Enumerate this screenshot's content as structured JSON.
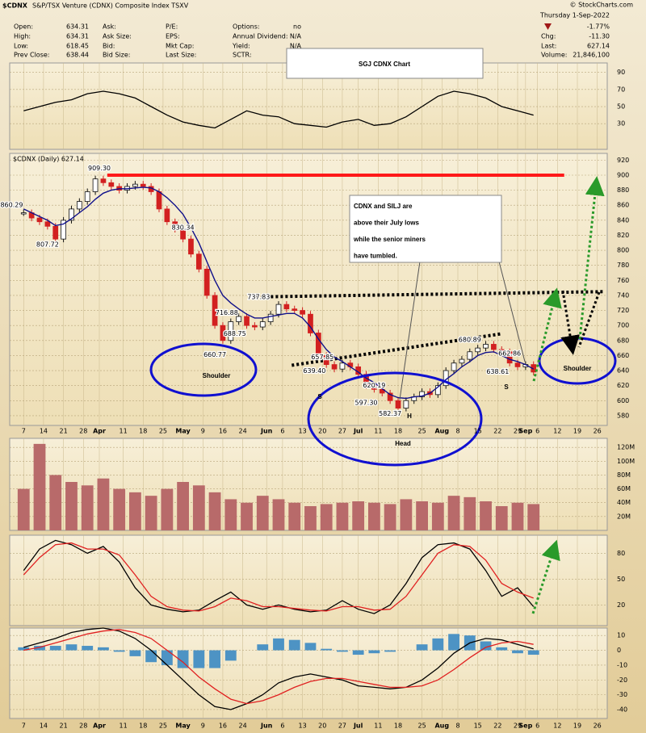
{
  "quote": {
    "symbol": "$CDNX",
    "description": "S&P/TSX Venture (CDNX) Composite Index TSXV",
    "credit": "© StockCharts.com",
    "col1": [
      {
        "label": "Open:",
        "value": "634.31"
      },
      {
        "label": "High:",
        "value": "634.31"
      },
      {
        "label": "Low:",
        "value": "618.45"
      },
      {
        "label": "Prev Close:",
        "value": "638.44"
      }
    ],
    "col2": [
      "Ask:",
      "Ask Size:",
      "Bid:",
      "Bid Size:"
    ],
    "col3": [
      "P/E:",
      "EPS:",
      "Mkt Cap:",
      "Last Size:"
    ],
    "col4": [
      {
        "label": "Options:",
        "value": "no"
      },
      {
        "label": "Annual Dividend:",
        "value": "N/A"
      },
      {
        "label": "Yield:",
        "value": "N/A"
      },
      {
        "label": "SCTR:"
      }
    ],
    "date": "Thursday  1-Sep-2022",
    "change_pct": "-1.77%",
    "right": [
      {
        "label": "Chg:",
        "value": "-11.30"
      },
      {
        "label": "Last:",
        "value": "627.14"
      },
      {
        "label": "Volume:",
        "value": "21,846,100"
      }
    ],
    "price_legend": "$CDNX (Daily) 627.14"
  },
  "annotations": {
    "title": "SGJ CDNX Chart",
    "callout": [
      "CDNX and SILJ are",
      "above their July lows",
      "while the senior miners",
      "have tumbled."
    ],
    "left_shoulder": "Shoulder",
    "head": "Head",
    "right_shoulder": "Shoulder",
    "s_left": "S",
    "h": "H",
    "s_right": "S"
  },
  "chart_data": [
    {
      "type": "line",
      "xlim": [
        -3.5,
        146.5
      ],
      "x": [
        0,
        4,
        8,
        12,
        16,
        20,
        24,
        28,
        32,
        36,
        40,
        44,
        48,
        52,
        56,
        60,
        64,
        68,
        72,
        76,
        80,
        84,
        88,
        92,
        96,
        100,
        104,
        108,
        112,
        116,
        120,
        124,
        128
      ],
      "series": [
        {
          "color": "#000000",
          "values": [
            45,
            50,
            55,
            58,
            65,
            68,
            65,
            60,
            50,
            40,
            32,
            28,
            25,
            35,
            45,
            40,
            38,
            30,
            28,
            26,
            32,
            35,
            28,
            30,
            38,
            50,
            62,
            68,
            65,
            60,
            50,
            45,
            40
          ]
        }
      ],
      "ylim": [
        0,
        101
      ],
      "yticks": [
        30,
        50,
        70,
        90
      ],
      "grid": true
    },
    {
      "type": "candle",
      "xlim": [
        -3.5,
        146.5
      ],
      "xticks": [
        {
          "value": 0,
          "label": "7"
        },
        {
          "value": 5,
          "label": "14"
        },
        {
          "value": 10,
          "label": "21"
        },
        {
          "value": 15,
          "label": "28"
        },
        {
          "value": 19,
          "label": "Apr"
        },
        {
          "value": 25,
          "label": "11"
        },
        {
          "value": 30,
          "label": "18"
        },
        {
          "value": 35,
          "label": "25"
        },
        {
          "value": 40,
          "label": "May"
        },
        {
          "value": 45,
          "label": "9"
        },
        {
          "value": 50,
          "label": "16"
        },
        {
          "value": 55,
          "label": "24"
        },
        {
          "value": 61,
          "label": "Jun"
        },
        {
          "value": 65,
          "label": "6"
        },
        {
          "value": 70,
          "label": "13"
        },
        {
          "value": 75,
          "label": "20"
        },
        {
          "value": 80,
          "label": "27"
        },
        {
          "value": 84,
          "label": "Jul"
        },
        {
          "value": 89,
          "label": "11"
        },
        {
          "value": 94,
          "label": "18"
        },
        {
          "value": 100,
          "label": "25"
        },
        {
          "value": 105,
          "label": "Aug"
        },
        {
          "value": 109,
          "label": "8"
        },
        {
          "value": 114,
          "label": "15"
        },
        {
          "value": 119,
          "label": "22"
        },
        {
          "value": 124,
          "label": "29"
        },
        {
          "value": 126,
          "label": "Sep"
        },
        {
          "value": 129,
          "label": "6"
        },
        {
          "value": 134,
          "label": "12"
        },
        {
          "value": 139,
          "label": "19"
        },
        {
          "value": 144,
          "label": "26"
        }
      ],
      "x": [
        0,
        2,
        4,
        6,
        8,
        10,
        12,
        14,
        16,
        18,
        20,
        22,
        24,
        26,
        28,
        30,
        32,
        34,
        36,
        38,
        40,
        42,
        44,
        46,
        48,
        50,
        52,
        54,
        56,
        58,
        60,
        62,
        64,
        66,
        68,
        70,
        72,
        74,
        76,
        78,
        80,
        82,
        84,
        86,
        88,
        90,
        92,
        94,
        96,
        98,
        100,
        102,
        104,
        106,
        108,
        110,
        112,
        114,
        116,
        118,
        120,
        122,
        124,
        126,
        128
      ],
      "series": [
        {
          "kind": "candle",
          "up_color": "#111111",
          "down_color": "#d22020",
          "values": [
            850,
            843,
            838,
            832,
            815,
            840,
            855,
            865,
            878,
            895,
            890,
            885,
            880,
            885,
            888,
            885,
            878,
            855,
            838,
            828,
            815,
            795,
            775,
            740,
            700,
            680,
            705,
            712,
            700,
            698,
            705,
            715,
            728,
            722,
            720,
            715,
            690,
            660,
            648,
            642,
            650,
            645,
            635,
            620,
            615,
            610,
            600,
            590,
            600,
            605,
            612,
            608,
            620,
            640,
            650,
            655,
            665,
            670,
            675,
            668,
            665,
            650,
            645,
            648,
            638
          ]
        },
        {
          "kind": "line",
          "color": "#10108a",
          "values": [
            855,
            850,
            845,
            840,
            833,
            835,
            842,
            850,
            858,
            868,
            876,
            880,
            882,
            882,
            883,
            884,
            883,
            878,
            870,
            860,
            848,
            830,
            810,
            785,
            760,
            740,
            730,
            722,
            715,
            710,
            710,
            712,
            714,
            716,
            716,
            710,
            698,
            682,
            668,
            658,
            652,
            645,
            638,
            630,
            624,
            616,
            608,
            604,
            603,
            605,
            606,
            610,
            618,
            628,
            636,
            645,
            652,
            660,
            664,
            665,
            660,
            655,
            652,
            648,
            642
          ]
        }
      ],
      "ylim": [
        567,
        929
      ],
      "yticks": [
        580,
        600,
        620,
        640,
        660,
        680,
        700,
        720,
        740,
        760,
        780,
        800,
        820,
        840,
        860,
        880,
        900,
        920
      ],
      "grid": true,
      "trendlines": [
        {
          "color": "#ff1a1a",
          "style": "solid",
          "x": [
            21,
            135.7
          ],
          "y": [
            900,
            900
          ]
        },
        {
          "color": "#000000",
          "style": "dotted",
          "x": [
            58.4,
            145.5
          ],
          "y": [
            738,
            745
          ]
        },
        {
          "color": "#000000",
          "style": "dotted",
          "x": [
            67.3,
            120
          ],
          "y": [
            647,
            689
          ]
        }
      ],
      "callouts": {
        "x": [
          -3,
          6,
          19,
          40,
          51,
          53,
          48,
          59,
          75,
          73,
          88,
          86,
          92,
          112,
          122,
          119
        ],
        "values": [
          860.29,
          807.72,
          909.3,
          830.34,
          716.88,
          688.75,
          660.77,
          737.83,
          657.85,
          639.4,
          620.19,
          597.3,
          582.37,
          680.89,
          662.86,
          638.61
        ],
        "value_labels": [
          "860.29",
          "807.72",
          "909.30",
          "830.34",
          "716.88",
          "688.75",
          "660.77",
          "737.83",
          "657.85",
          "639.40",
          "620.19",
          "597.30",
          "582.37",
          "680.89",
          "662.86",
          "638.61"
        ]
      }
    },
    {
      "type": "bar",
      "xlim": [
        -3.5,
        146.5
      ],
      "x": [
        0,
        4,
        8,
        12,
        16,
        20,
        24,
        28,
        32,
        36,
        40,
        44,
        48,
        52,
        56,
        60,
        64,
        68,
        72,
        76,
        80,
        84,
        88,
        92,
        96,
        100,
        104,
        108,
        112,
        116,
        120,
        124,
        128
      ],
      "series": [
        {
          "color": "#b86a6a",
          "values": [
            60,
            125,
            80,
            70,
            65,
            75,
            60,
            55,
            50,
            60,
            70,
            65,
            55,
            45,
            40,
            50,
            45,
            40,
            35,
            38,
            40,
            42,
            40,
            38,
            45,
            42,
            40,
            50,
            48,
            42,
            35,
            40,
            38
          ]
        }
      ],
      "ylim": [
        0,
        133
      ],
      "yticks": [
        {
          "value": 20,
          "label": "20M"
        },
        {
          "value": 40,
          "label": "40M"
        },
        {
          "value": 60,
          "label": "60M"
        },
        {
          "value": 80,
          "label": "80M"
        },
        {
          "value": 100,
          "label": "100M"
        },
        {
          "value": 120,
          "label": "120M"
        }
      ],
      "grid": true
    },
    {
      "type": "line",
      "xlim": [
        -3.5,
        146.5
      ],
      "x": [
        0,
        4,
        8,
        12,
        16,
        20,
        24,
        28,
        32,
        36,
        40,
        44,
        48,
        52,
        56,
        60,
        64,
        68,
        72,
        76,
        80,
        84,
        88,
        92,
        96,
        100,
        104,
        108,
        112,
        116,
        120,
        124,
        128
      ],
      "series": [
        {
          "color": "#000000",
          "values": [
            60,
            85,
            95,
            90,
            80,
            88,
            70,
            40,
            20,
            15,
            12,
            14,
            25,
            35,
            20,
            15,
            20,
            15,
            12,
            14,
            25,
            15,
            10,
            20,
            45,
            75,
            90,
            92,
            85,
            60,
            30,
            40,
            18
          ]
        },
        {
          "color": "#e02020",
          "values": [
            55,
            75,
            90,
            92,
            85,
            85,
            78,
            55,
            30,
            18,
            14,
            13,
            18,
            28,
            25,
            18,
            18,
            16,
            14,
            13,
            18,
            18,
            14,
            15,
            30,
            55,
            80,
            90,
            88,
            72,
            45,
            35,
            28
          ]
        }
      ],
      "ylim": [
        -4,
        101
      ],
      "yticks": [
        20,
        50,
        80
      ],
      "grid": true
    },
    {
      "type": "macd",
      "xlim": [
        -3.5,
        146.5
      ],
      "x": [
        0,
        4,
        8,
        12,
        16,
        20,
        24,
        28,
        32,
        36,
        40,
        44,
        48,
        52,
        56,
        60,
        64,
        68,
        72,
        76,
        80,
        84,
        88,
        92,
        96,
        100,
        104,
        108,
        112,
        116,
        120,
        124,
        128
      ],
      "series": [
        {
          "kind": "bar",
          "color": "#4d93c4",
          "values": [
            2,
            3,
            3,
            4,
            3,
            2,
            -1,
            -4,
            -8,
            -10,
            -12,
            -12,
            -12,
            -7,
            0,
            4,
            8,
            7,
            5,
            1,
            -1,
            -3,
            -2,
            -1,
            0,
            4,
            8,
            11,
            10,
            6,
            2,
            -2,
            -3
          ]
        },
        {
          "kind": "line",
          "color": "#000000",
          "values": [
            2,
            5,
            8,
            12,
            14,
            15,
            13,
            8,
            0,
            -10,
            -20,
            -30,
            -38,
            -40,
            -36,
            -30,
            -22,
            -18,
            -16,
            -18,
            -20,
            -24,
            -25,
            -26,
            -25,
            -20,
            -12,
            -2,
            5,
            8,
            7,
            4,
            1
          ]
        },
        {
          "kind": "line",
          "color": "#e02020",
          "values": [
            0,
            2,
            5,
            8,
            11,
            13,
            14,
            12,
            8,
            0,
            -8,
            -18,
            -26,
            -33,
            -36,
            -34,
            -30,
            -25,
            -21,
            -19,
            -19,
            -21,
            -23,
            -25,
            -25,
            -24,
            -20,
            -13,
            -5,
            2,
            5,
            6,
            4
          ]
        }
      ],
      "ylim": [
        -46,
        15
      ],
      "yticks": [
        -40,
        -30,
        -20,
        -10,
        0,
        10
      ],
      "grid": true
    }
  ]
}
